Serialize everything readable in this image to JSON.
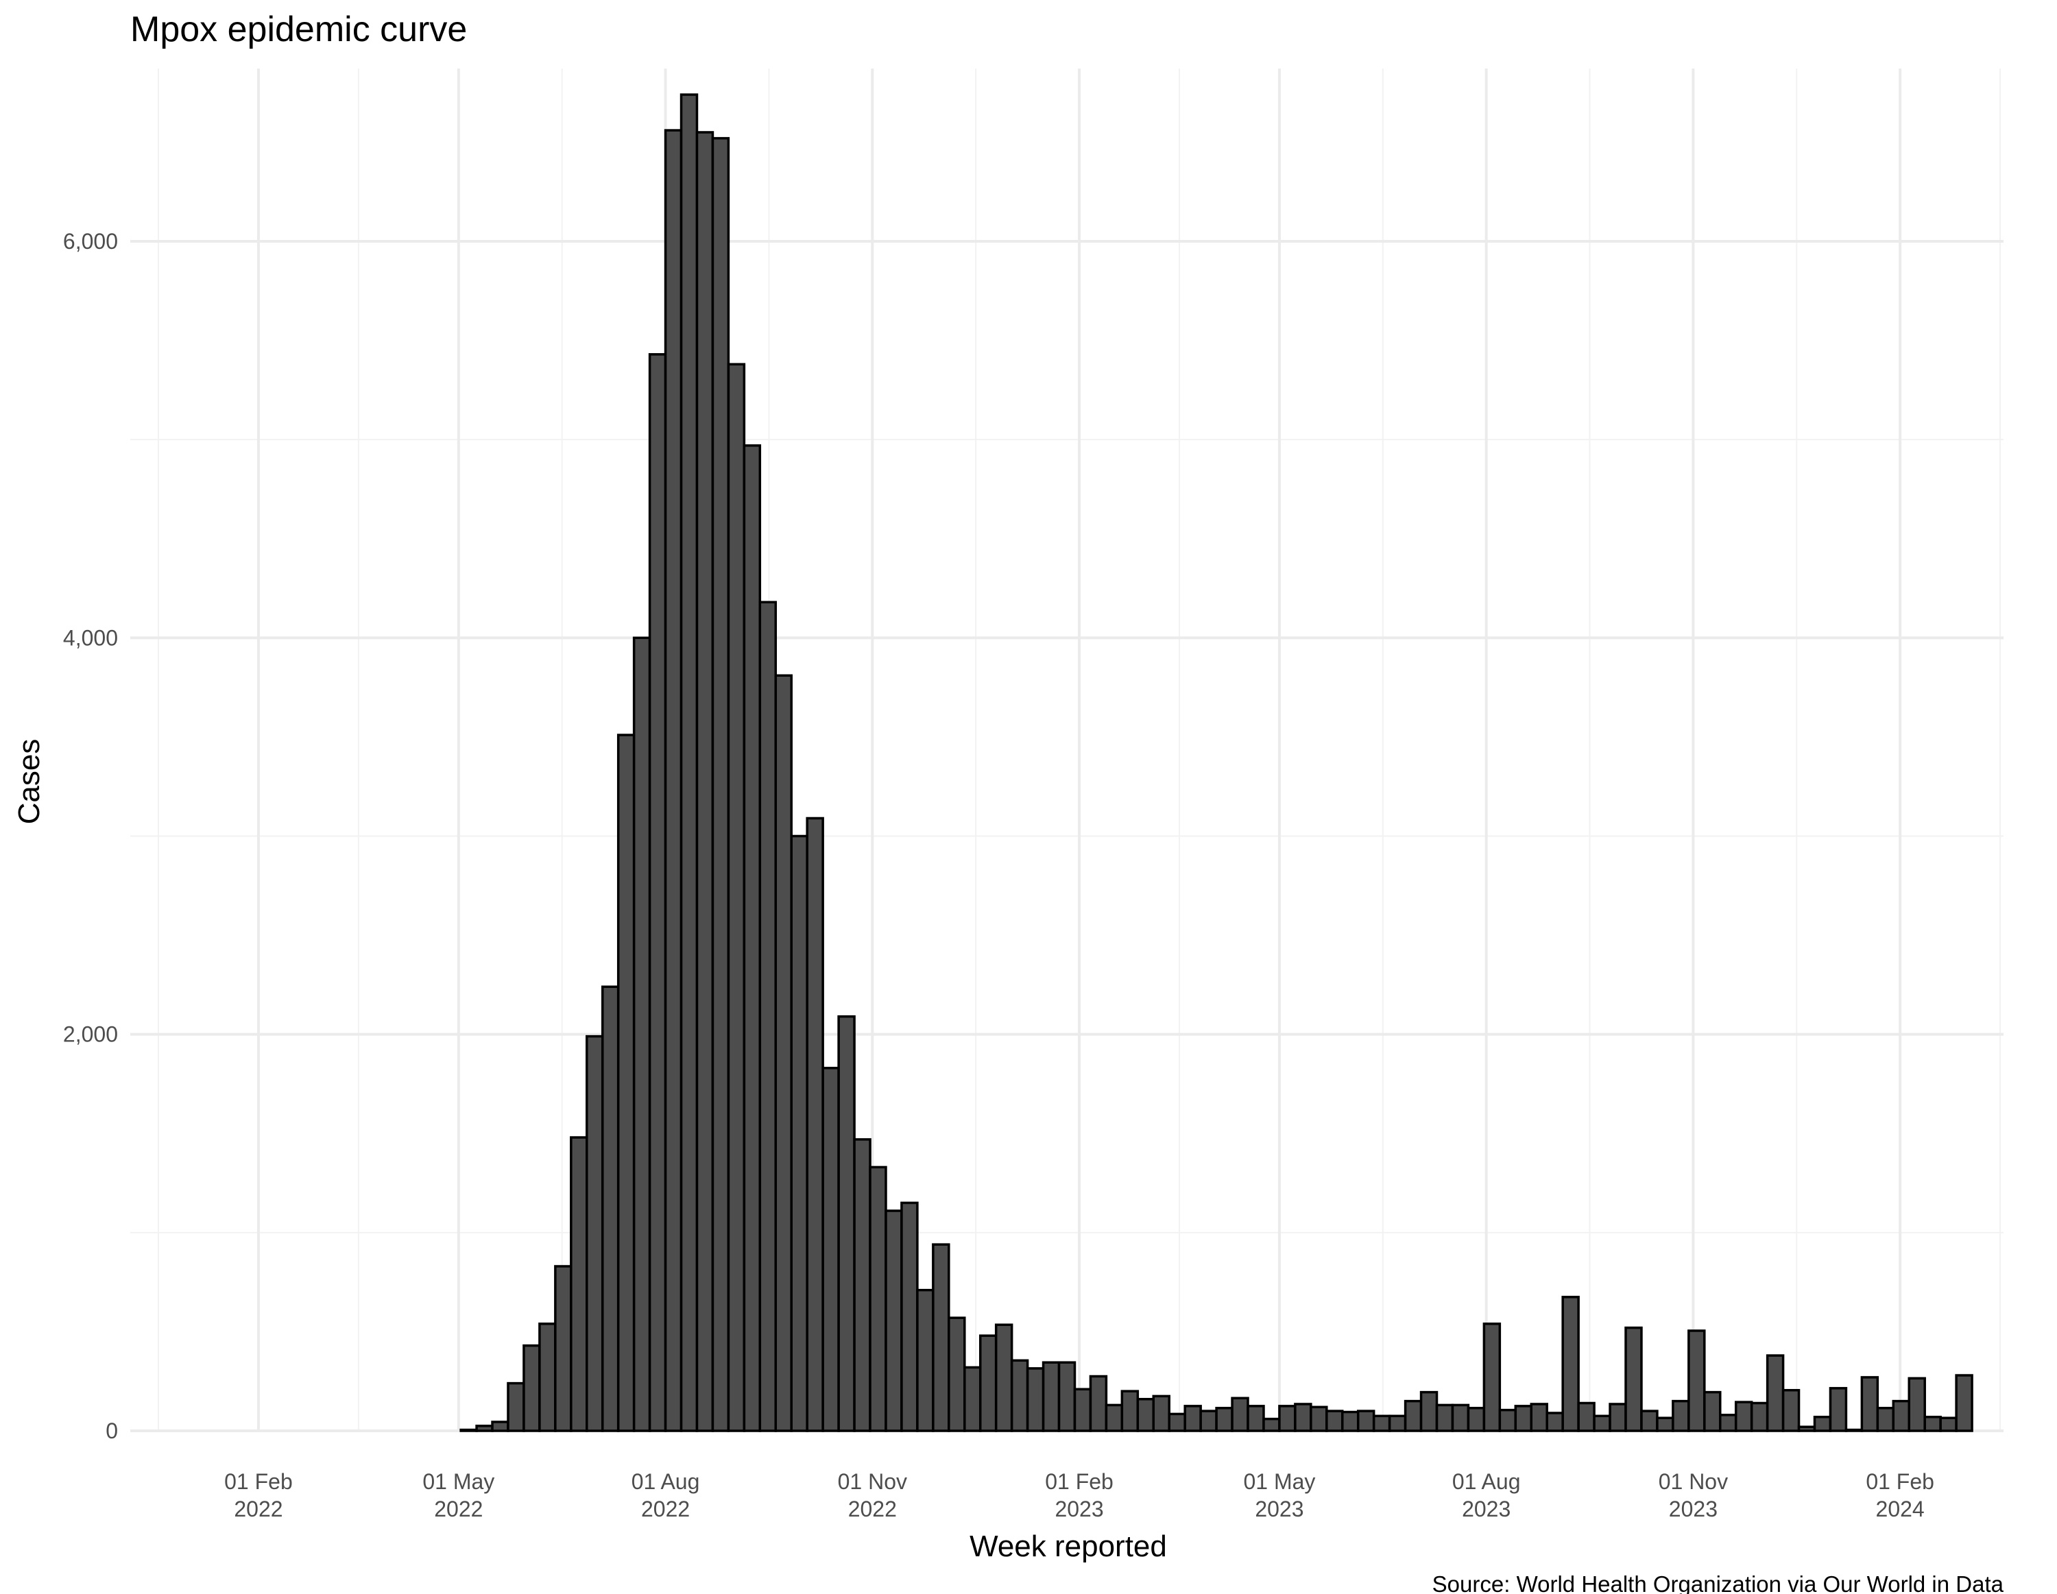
{
  "chart_data": {
    "type": "bar",
    "title": "Mpox epidemic curve",
    "xlabel": "Week reported",
    "ylabel": "Cases",
    "caption": "Source: World Health Organization via Our World in Data",
    "x_axis_type": "date",
    "x_start": "2021-12-06",
    "x_end": "2024-03-18",
    "x_ticks": [
      {
        "date": "2022-02-01",
        "line1": "01 Feb",
        "line2": "2022"
      },
      {
        "date": "2022-05-01",
        "line1": "01 May",
        "line2": "2022"
      },
      {
        "date": "2022-08-01",
        "line1": "01 Aug",
        "line2": "2022"
      },
      {
        "date": "2022-11-01",
        "line1": "01 Nov",
        "line2": "2022"
      },
      {
        "date": "2023-02-01",
        "line1": "01 Feb",
        "line2": "2023"
      },
      {
        "date": "2023-05-01",
        "line1": "01 May",
        "line2": "2023"
      },
      {
        "date": "2023-08-01",
        "line1": "01 Aug",
        "line2": "2023"
      },
      {
        "date": "2023-11-01",
        "line1": "01 Nov",
        "line2": "2023"
      },
      {
        "date": "2024-02-01",
        "line1": "01 Feb",
        "line2": "2024"
      }
    ],
    "ylim": [
      0,
      6750
    ],
    "y_ticks": [
      0,
      2000,
      4000,
      6000
    ],
    "y_tick_labels": [
      "0",
      "2,000",
      "4,000",
      "6,000"
    ],
    "y_minor_ticks": [
      1000,
      3000,
      5000
    ],
    "grid": true,
    "bar_fill": "#4d4d4d",
    "bar_outline": "#000000",
    "series": [
      {
        "week_start": [
          "2022-05-02",
          "2022-05-09",
          "2022-05-16",
          "2022-05-23",
          "2022-05-30",
          "2022-06-06",
          "2022-06-13",
          "2022-06-20",
          "2022-06-27",
          "2022-07-04",
          "2022-07-11",
          "2022-07-18",
          "2022-07-25",
          "2022-08-01",
          "2022-08-08",
          "2022-08-15",
          "2022-08-22",
          "2022-08-29",
          "2022-09-05",
          "2022-09-12",
          "2022-09-19",
          "2022-09-26",
          "2022-10-03",
          "2022-10-10",
          "2022-10-17",
          "2022-10-24",
          "2022-10-31",
          "2022-11-07",
          "2022-11-14",
          "2022-11-21",
          "2022-11-28",
          "2022-12-05",
          "2022-12-12",
          "2022-12-19",
          "2022-12-26",
          "2023-01-02",
          "2023-01-09",
          "2023-01-16",
          "2023-01-23",
          "2023-01-30",
          "2023-02-06",
          "2023-02-13",
          "2023-02-20",
          "2023-02-27",
          "2023-03-06",
          "2023-03-13",
          "2023-03-20",
          "2023-03-27",
          "2023-04-03",
          "2023-04-10",
          "2023-04-17",
          "2023-04-24",
          "2023-05-01",
          "2023-05-08",
          "2023-05-15",
          "2023-05-22",
          "2023-05-29",
          "2023-06-05",
          "2023-06-12",
          "2023-06-19",
          "2023-06-26",
          "2023-07-03",
          "2023-07-10",
          "2023-07-17",
          "2023-07-24",
          "2023-07-31",
          "2023-08-07",
          "2023-08-14",
          "2023-08-21",
          "2023-08-28",
          "2023-09-04",
          "2023-09-11",
          "2023-09-18",
          "2023-09-25",
          "2023-10-02",
          "2023-10-09",
          "2023-10-16",
          "2023-10-23",
          "2023-10-30",
          "2023-11-06",
          "2023-11-13",
          "2023-11-20",
          "2023-11-27",
          "2023-12-04",
          "2023-12-11",
          "2023-12-18",
          "2023-12-25",
          "2024-01-01",
          "2024-01-08",
          "2024-01-15",
          "2024-01-22",
          "2024-01-29",
          "2024-02-05",
          "2024-02-12",
          "2024-02-19",
          "2024-02-26"
        ],
        "values": [
          5,
          25,
          45,
          240,
          430,
          540,
          830,
          1480,
          1990,
          2240,
          3510,
          4000,
          5430,
          6560,
          6740,
          6550,
          6520,
          5380,
          4970,
          4180,
          3810,
          3000,
          3090,
          1830,
          2090,
          1470,
          1330,
          1110,
          1150,
          710,
          940,
          570,
          320,
          480,
          535,
          355,
          315,
          345,
          345,
          210,
          275,
          130,
          200,
          160,
          175,
          85,
          125,
          100,
          115,
          165,
          125,
          60,
          125,
          135,
          120,
          100,
          95,
          100,
          75,
          75,
          150,
          195,
          130,
          130,
          115,
          540,
          105,
          125,
          135,
          90,
          675,
          140,
          75,
          135,
          520,
          100,
          65,
          150,
          505,
          195,
          80,
          145,
          140,
          380,
          205,
          20,
          70,
          215,
          5,
          270,
          115,
          150,
          265,
          70,
          65,
          280
        ]
      }
    ]
  }
}
